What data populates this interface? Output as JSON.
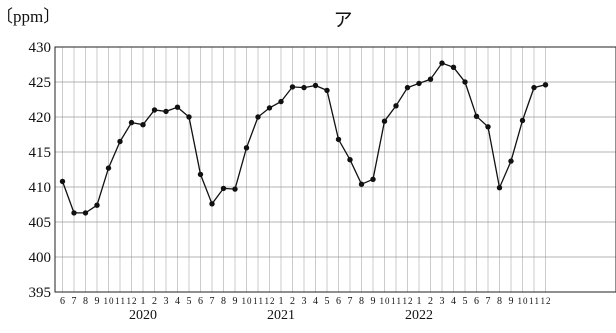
{
  "chart_data": {
    "type": "line",
    "title": "ア",
    "ylabel": "〔ppm〕",
    "xlabel": "",
    "ylim": [
      395,
      430
    ],
    "yticks": [
      395,
      400,
      405,
      410,
      415,
      420,
      425,
      430
    ],
    "grid": true,
    "x": [
      "2020-06",
      "2020-07",
      "2020-08",
      "2020-09",
      "2020-10",
      "2020-11",
      "2020-12",
      "2021-01",
      "2021-02",
      "2021-03",
      "2021-04",
      "2021-05",
      "2021-06",
      "2021-07",
      "2021-08",
      "2021-09",
      "2021-10",
      "2021-11",
      "2021-12",
      "2022-01",
      "2022-02",
      "2022-03",
      "2022-04",
      "2022-05",
      "2022-06",
      "2022-07",
      "2022-08",
      "2022-09",
      "2022-10",
      "2022-11",
      "2022-12",
      "2023-01",
      "2023-02",
      "2023-03",
      "2023-04",
      "2023-05",
      "2023-06",
      "2023-07",
      "2023-08",
      "2023-09",
      "2023-10",
      "2023-11",
      "2023-12"
    ],
    "month_labels": [
      "6",
      "7",
      "8",
      "9",
      "10",
      "11",
      "12",
      "1",
      "2",
      "3",
      "4",
      "5",
      "6",
      "7",
      "8",
      "9",
      "10",
      "11",
      "12",
      "1",
      "2",
      "3",
      "4",
      "5",
      "6",
      "7",
      "8",
      "9",
      "10",
      "11",
      "12",
      "1",
      "2",
      "3",
      "4",
      "5",
      "6",
      "7",
      "8",
      "9",
      "10",
      "11",
      "12"
    ],
    "year_labels": [
      {
        "text": "2020",
        "month_index": 7
      },
      {
        "text": "2021",
        "month_index": 19
      },
      {
        "text": "2022",
        "month_index": 31
      }
    ],
    "series": [
      {
        "values": [
          410.8,
          406.3,
          406.3,
          407.4,
          412.7,
          416.5,
          419.2,
          418.9,
          421.0,
          420.8,
          421.4,
          420.0,
          411.8,
          407.6,
          409.8,
          409.7,
          415.6,
          420.0,
          421.3,
          422.2,
          424.3,
          424.2,
          424.5,
          423.8,
          416.8,
          413.9,
          410.4,
          411.1,
          419.4,
          421.6,
          424.2,
          424.8,
          425.4,
          427.7,
          427.1,
          425.0,
          420.1,
          418.6,
          409.9,
          413.7,
          419.5,
          424.2,
          424.6
        ]
      }
    ]
  }
}
